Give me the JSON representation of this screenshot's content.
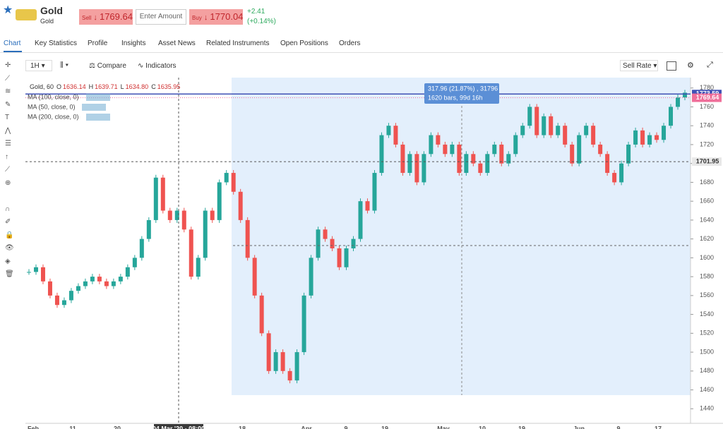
{
  "header": {
    "title": "Gold",
    "subtitle": "Gold",
    "sell_label": "Sell",
    "sell_price": "1769.64",
    "amount_placeholder": "Enter Amount",
    "buy_label": "Buy",
    "buy_price": "1770.04",
    "change": "+2.41",
    "change_pct": "(+0.14%)"
  },
  "tabs": [
    "Chart",
    "Key Statistics",
    "Profile",
    "Insights",
    "Asset News",
    "Related Instruments",
    "Open Positions",
    "Orders"
  ],
  "toolbar": {
    "interval": "1H",
    "compare": "Compare",
    "indicators": "Indicators",
    "rate": "Sell Rate"
  },
  "legend": {
    "symbol": "Gold, 60",
    "open_label": "O",
    "open": "1636.14",
    "high_label": "H",
    "high": "1639.71",
    "low_label": "L",
    "low": "1634.80",
    "close_label": "C",
    "close": "1635.95"
  },
  "indicators": [
    "MA (100, close, 0)",
    "MA (50, close, 0)",
    "MA (200, close, 0)"
  ],
  "measure": {
    "line1": "317.96 (21.87%) , 31796",
    "line2": "1620 bars, 99d 16h"
  },
  "chart_data": {
    "type": "candlestick",
    "ylim": [
      1432,
      1791
    ],
    "yticks": [
      1440,
      1460,
      1480,
      1500,
      1520,
      1540,
      1560,
      1580,
      1600,
      1620,
      1640,
      1660,
      1680,
      1700,
      1720,
      1740,
      1760,
      1780
    ],
    "x_labels": [
      "Feb",
      "11",
      "20",
      "04 Mar '20 - 08:00",
      "18",
      "Apr",
      "9",
      "19",
      "May",
      "10",
      "19",
      "Jun",
      "9",
      "17"
    ],
    "values": [
      1585,
      1590,
      1575,
      1560,
      1550,
      1555,
      1565,
      1570,
      1575,
      1580,
      1575,
      1570,
      1575,
      1580,
      1590,
      1600,
      1620,
      1640,
      1685,
      1650,
      1640,
      1650,
      1630,
      1580,
      1600,
      1650,
      1640,
      1680,
      1690,
      1670,
      1640,
      1600,
      1560,
      1520,
      1480,
      1500,
      1480,
      1470,
      1500,
      1560,
      1600,
      1630,
      1620,
      1610,
      1590,
      1610,
      1620,
      1660,
      1650,
      1690,
      1730,
      1740,
      1720,
      1690,
      1710,
      1680,
      1710,
      1730,
      1720,
      1710,
      1720,
      1690,
      1710,
      1700,
      1690,
      1710,
      1720,
      1700,
      1710,
      1730,
      1740,
      1760,
      1730,
      1750,
      1730,
      1740,
      1720,
      1700,
      1730,
      1740,
      1720,
      1710,
      1690,
      1680,
      1700,
      1720,
      1735,
      1720,
      1730,
      1725,
      1740,
      1760,
      1770,
      1775
    ],
    "up_color": "#26a69a",
    "down_color": "#ef5350",
    "price_tags": [
      {
        "value": 1773.59,
        "color": "#3f51b5"
      },
      {
        "value": 1769.64,
        "color": "#ef6f9a"
      },
      {
        "value": 1701.95,
        "color": "#e8e8e8"
      }
    ]
  }
}
